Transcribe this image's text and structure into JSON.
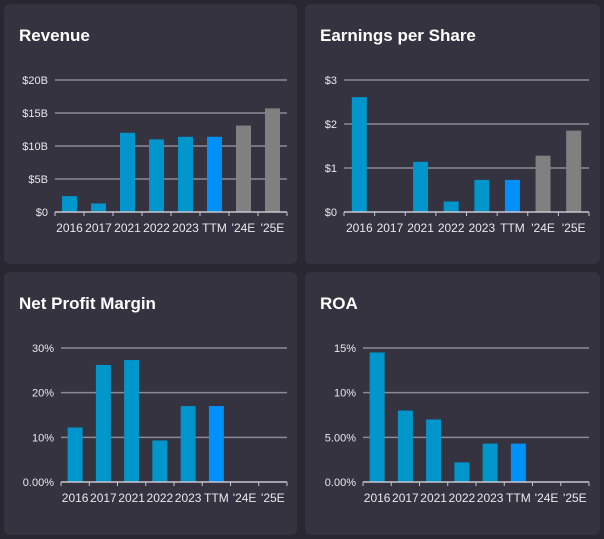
{
  "colors": {
    "historical": "#0096cc",
    "ttm": "#0090fa",
    "estimate": "#808080",
    "grid": "#8c8a96",
    "axis": "#c8c8d0"
  },
  "chart_data": [
    {
      "type": "bar",
      "title": "Revenue",
      "categories": [
        "2016",
        "2017",
        "2021",
        "2022",
        "2023",
        "TTM",
        "'24E",
        "'25E"
      ],
      "kinds": [
        "historical",
        "historical",
        "historical",
        "historical",
        "historical",
        "ttm",
        "estimate",
        "estimate"
      ],
      "values": [
        2.4,
        1.3,
        12.0,
        11.0,
        11.4,
        11.4,
        13.1,
        15.7
      ],
      "yticks": [
        0,
        5,
        10,
        15,
        20
      ],
      "ytick_labels": [
        "$0",
        "$5B",
        "$10B",
        "$15B",
        "$20B"
      ],
      "ylim": [
        0,
        20
      ],
      "grid": true
    },
    {
      "type": "bar",
      "title": "Earnings per Share",
      "categories": [
        "2016",
        "2017",
        "2021",
        "2022",
        "2023",
        "TTM",
        "'24E",
        "'25E"
      ],
      "kinds": [
        "historical",
        "historical",
        "historical",
        "historical",
        "historical",
        "ttm",
        "estimate",
        "estimate"
      ],
      "values": [
        2.61,
        null,
        1.14,
        0.24,
        0.73,
        0.73,
        1.28,
        1.85
      ],
      "yticks": [
        0,
        1,
        2,
        3
      ],
      "ytick_labels": [
        "$0",
        "$1",
        "$2",
        "$3"
      ],
      "ylim": [
        0,
        3
      ],
      "grid": true
    },
    {
      "type": "bar",
      "title": "Net Profit Margin",
      "categories": [
        "2016",
        "2017",
        "2021",
        "2022",
        "2023",
        "TTM",
        "'24E",
        "'25E"
      ],
      "kinds": [
        "historical",
        "historical",
        "historical",
        "historical",
        "historical",
        "ttm",
        "estimate",
        "estimate"
      ],
      "values": [
        12.2,
        26.2,
        27.3,
        9.3,
        17.0,
        17.0,
        null,
        null
      ],
      "yticks": [
        0,
        10,
        20,
        30
      ],
      "ytick_labels": [
        "0.00%",
        "10%",
        "20%",
        "30%"
      ],
      "ylim": [
        0,
        30
      ],
      "grid": true
    },
    {
      "type": "bar",
      "title": "ROA",
      "categories": [
        "2016",
        "2017",
        "2021",
        "2022",
        "2023",
        "TTM",
        "'24E",
        "'25E"
      ],
      "kinds": [
        "historical",
        "historical",
        "historical",
        "historical",
        "historical",
        "ttm",
        "estimate",
        "estimate"
      ],
      "values": [
        14.5,
        8.0,
        7.0,
        2.2,
        4.3,
        4.3,
        null,
        null
      ],
      "yticks": [
        0,
        5,
        10,
        15
      ],
      "ytick_labels": [
        "0.00%",
        "5.00%",
        "10%",
        "15%"
      ],
      "ylim": [
        0,
        15
      ],
      "grid": true
    }
  ]
}
